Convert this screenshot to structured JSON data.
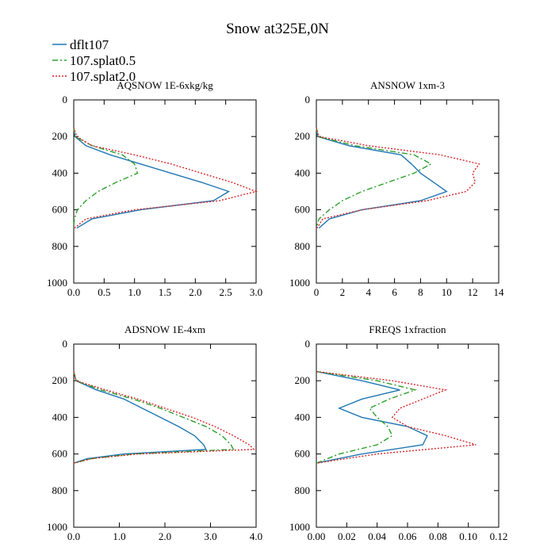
{
  "figure_title": "Snow at325E,0N",
  "legend": [
    {
      "name": "dflt107",
      "color": "#1f77b4",
      "dash": "solid"
    },
    {
      "name": "107.splat0.5",
      "color": "#2ca02c",
      "dash": "dashdot"
    },
    {
      "name": "107.splat2.0",
      "color": "#d62728",
      "dash": "dotted"
    }
  ],
  "chart_data": [
    {
      "type": "line",
      "title": "AQSNOW  1E-6xkg/kg",
      "xlim": [
        0,
        3.0
      ],
      "ylim": [
        1000,
        0
      ],
      "xticks": [
        0,
        0.5,
        1.0,
        1.5,
        2.0,
        2.5,
        3.0
      ],
      "xtick_labels": [
        "0.0",
        "0.5",
        "1.0",
        "1.5",
        "2.0",
        "2.5",
        "3.0"
      ],
      "yticks": [
        0,
        200,
        400,
        600,
        800,
        1000
      ],
      "ytick_labels": [
        "0",
        "200",
        "400",
        "600",
        "800",
        "1000"
      ],
      "y": [
        150,
        200,
        250,
        300,
        350,
        400,
        450,
        500,
        550,
        600,
        650,
        700
      ],
      "series": [
        {
          "name": "dflt107",
          "values": [
            0,
            0.02,
            0.2,
            0.6,
            1.1,
            1.6,
            2.1,
            2.55,
            2.3,
            1.1,
            0.3,
            0.05
          ]
        },
        {
          "name": "107.splat0.5",
          "values": [
            0,
            0.02,
            0.3,
            0.8,
            1.0,
            1.05,
            0.7,
            0.4,
            0.2,
            0.06,
            0.01,
            0
          ]
        },
        {
          "name": "107.splat2.0",
          "values": [
            0,
            0.05,
            0.3,
            1.0,
            1.6,
            2.1,
            2.6,
            3.0,
            2.4,
            1.0,
            0.2,
            0.01
          ]
        }
      ]
    },
    {
      "type": "line",
      "title": "ANSNOW  1xm-3",
      "xlim": [
        0,
        14
      ],
      "ylim": [
        1000,
        0
      ],
      "xticks": [
        0,
        2,
        4,
        6,
        8,
        10,
        12,
        14
      ],
      "xtick_labels": [
        "0",
        "2",
        "4",
        "6",
        "8",
        "10",
        "12",
        "14"
      ],
      "yticks": [
        0,
        200,
        400,
        600,
        800,
        1000
      ],
      "ytick_labels": [
        "0",
        "200",
        "400",
        "600",
        "800",
        "1000"
      ],
      "y": [
        150,
        200,
        250,
        300,
        350,
        400,
        450,
        500,
        550,
        600,
        650,
        700
      ],
      "series": [
        {
          "name": "dflt107",
          "values": [
            0,
            0.1,
            2.5,
            6.5,
            7.3,
            8.0,
            9.0,
            10.0,
            8.0,
            3.5,
            1.0,
            0.2
          ]
        },
        {
          "name": "107.splat0.5",
          "values": [
            0,
            0.1,
            3.0,
            7.5,
            8.8,
            7.5,
            5.5,
            3.5,
            2.0,
            1.0,
            0.2,
            0
          ]
        },
        {
          "name": "107.splat2.0",
          "values": [
            0,
            0.2,
            4.0,
            9.5,
            12.5,
            12.0,
            12.2,
            11.5,
            8.5,
            3.5,
            0.5,
            0.05
          ]
        }
      ]
    },
    {
      "type": "line",
      "title": "ADSNOW  1E-4xm",
      "xlim": [
        0,
        4.0
      ],
      "ylim": [
        1000,
        0
      ],
      "xticks": [
        0,
        1.0,
        2.0,
        3.0,
        4.0
      ],
      "xtick_labels": [
        "0.0",
        "1.0",
        "2.0",
        "3.0",
        "4.0"
      ],
      "yticks": [
        0,
        200,
        400,
        600,
        800,
        1000
      ],
      "ytick_labels": [
        "0",
        "200",
        "400",
        "600",
        "800",
        "1000"
      ],
      "y": [
        150,
        200,
        250,
        300,
        350,
        400,
        450,
        500,
        550,
        575,
        600,
        625,
        650
      ],
      "series": [
        {
          "name": "dflt107",
          "values": [
            0,
            0.05,
            0.5,
            1.1,
            1.5,
            1.9,
            2.3,
            2.65,
            2.85,
            2.9,
            1.1,
            0.3,
            0
          ]
        },
        {
          "name": "107.splat0.5",
          "values": [
            0,
            0.05,
            0.6,
            1.3,
            1.9,
            2.4,
            2.9,
            3.25,
            3.45,
            3.5,
            1.3,
            0.4,
            0
          ]
        },
        {
          "name": "107.splat2.0",
          "values": [
            0,
            0.05,
            0.7,
            1.4,
            2.0,
            2.6,
            3.1,
            3.5,
            3.85,
            3.95,
            1.4,
            0.4,
            0
          ]
        }
      ]
    },
    {
      "type": "line",
      "title": "FREQS  1xfraction",
      "xlim": [
        0,
        0.12
      ],
      "ylim": [
        1000,
        0
      ],
      "xticks": [
        0,
        0.02,
        0.04,
        0.06,
        0.08,
        0.1,
        0.12
      ],
      "xtick_labels": [
        "0.00",
        "0.02",
        "0.04",
        "0.06",
        "0.08",
        "0.10",
        "0.12"
      ],
      "yticks": [
        0,
        200,
        400,
        600,
        800,
        1000
      ],
      "ytick_labels": [
        "0",
        "200",
        "400",
        "600",
        "800",
        "1000"
      ],
      "y": [
        150,
        200,
        250,
        300,
        350,
        400,
        450,
        500,
        550,
        600,
        650
      ],
      "series": [
        {
          "name": "dflt107",
          "values": [
            0,
            0.03,
            0.055,
            0.03,
            0.015,
            0.03,
            0.06,
            0.073,
            0.07,
            0.03,
            0
          ]
        },
        {
          "name": "107.splat0.5",
          "values": [
            0,
            0.04,
            0.065,
            0.048,
            0.035,
            0.04,
            0.047,
            0.05,
            0.04,
            0.015,
            0
          ]
        },
        {
          "name": "107.splat2.0",
          "values": [
            0,
            0.05,
            0.085,
            0.07,
            0.055,
            0.05,
            0.06,
            0.085,
            0.105,
            0.04,
            0
          ]
        }
      ]
    }
  ]
}
